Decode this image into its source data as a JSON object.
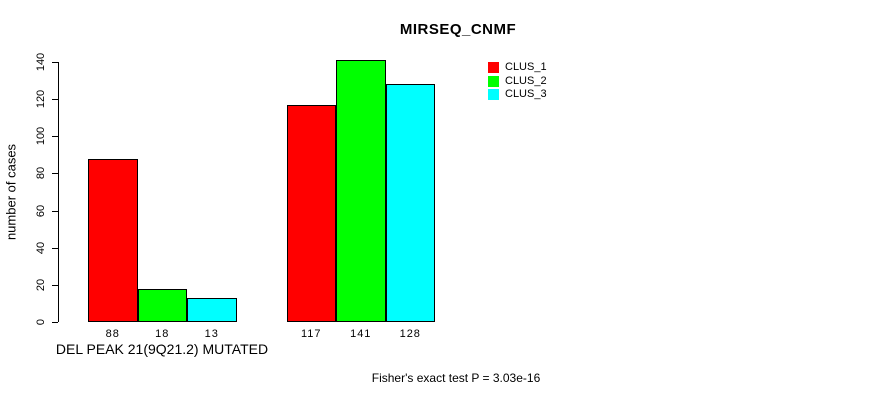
{
  "title": "MIRSEQ_CNMF",
  "y_axis": {
    "label": "number of cases"
  },
  "x_axis": {
    "label": "DEL PEAK 21(9Q21.2) MUTATED"
  },
  "caption": "Fisher's exact test P = 3.03e-16",
  "chart_data": {
    "type": "bar",
    "title": "MIRSEQ_CNMF",
    "ylabel": "number of cases",
    "xlabel": "DEL PEAK 21(9Q21.2) MUTATED",
    "annotation": "Fisher's exact test P = 3.03e-16",
    "categories": [
      "DEL PEAK 21(9Q21.2) MUTATED",
      ""
    ],
    "series": [
      {
        "name": "CLUS_1",
        "color": "#ff0000",
        "values": [
          88,
          117
        ]
      },
      {
        "name": "CLUS_2",
        "color": "#00ff00",
        "values": [
          18,
          141
        ]
      },
      {
        "name": "CLUS_3",
        "color": "#00ffff",
        "values": [
          13,
          128
        ]
      }
    ],
    "bar_value_labels": [
      [
        "88",
        "18",
        "13"
      ],
      [
        "117",
        "141",
        "128"
      ]
    ],
    "ylim": [
      0,
      140
    ],
    "yticks": [
      0,
      20,
      40,
      60,
      80,
      100,
      120,
      140
    ],
    "grid": false,
    "legend_position": "top-right-outside",
    "bar_border_color": "#000000",
    "axis_color": "#000000"
  }
}
